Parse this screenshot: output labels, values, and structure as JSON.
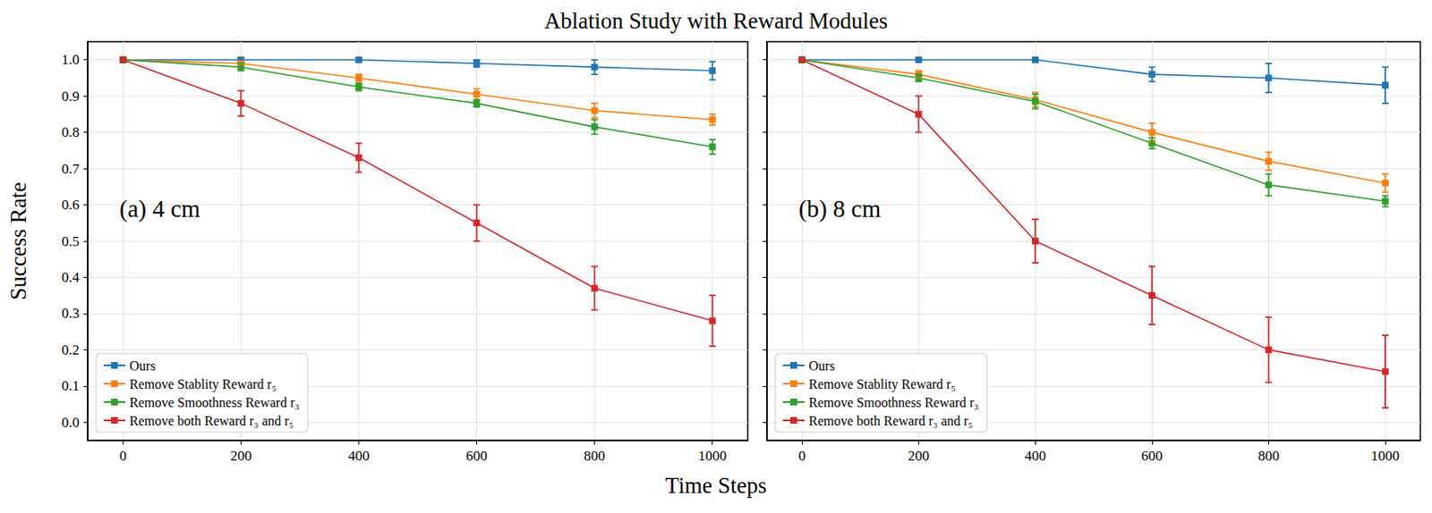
{
  "title": "Ablation Study with Reward Modules",
  "x_label": "Time Steps",
  "y_label": "Success Rate",
  "chart_data": [
    {
      "type": "line",
      "annotation": "(a) 4 cm",
      "legend": "lower left",
      "grid": true,
      "marker": "square",
      "x": [
        0,
        200,
        400,
        600,
        800,
        1000
      ],
      "xlim": [
        -60,
        1060
      ],
      "xticks": [
        0,
        200,
        400,
        600,
        800,
        1000
      ],
      "ylim": [
        -0.05,
        1.05
      ],
      "yticks": [
        {
          "value": 0,
          "label": "0.0"
        },
        0.1,
        0.2,
        0.3,
        0.4,
        0.5,
        0.6,
        0.7,
        0.8,
        0.9,
        {
          "value": 1,
          "label": "1.0"
        }
      ],
      "series": [
        {
          "name": "Ours",
          "color": "#1f77b4",
          "values": [
            1.0,
            1.0,
            1.0,
            0.99,
            0.98,
            0.97
          ],
          "errors": [
            0,
            0.005,
            0.005,
            0.01,
            0.02,
            0.025
          ]
        },
        {
          "name": "Remove Stablity Reward r₅",
          "color": "#ff7f0e",
          "values": [
            1.0,
            0.99,
            0.95,
            0.905,
            0.86,
            0.835
          ],
          "errors": [
            0,
            0.005,
            0.01,
            0.015,
            0.02,
            0.015
          ]
        },
        {
          "name": "Remove Smoothness Reward r₃",
          "color": "#2ca02c",
          "values": [
            1.0,
            0.98,
            0.925,
            0.88,
            0.815,
            0.76
          ],
          "errors": [
            0,
            0.01,
            0.01,
            0.01,
            0.02,
            0.02
          ]
        },
        {
          "name": "Remove both Reward r₃ and r₅",
          "color": "#d62728",
          "values": [
            1.0,
            0.88,
            0.73,
            0.55,
            0.37,
            0.28
          ],
          "errors": [
            0,
            0.035,
            0.04,
            0.05,
            0.06,
            0.07
          ]
        }
      ]
    },
    {
      "type": "line",
      "annotation": "(b) 8 cm",
      "legend": "lower left",
      "grid": true,
      "marker": "square",
      "tick_labels": "x",
      "x": [
        0,
        200,
        400,
        600,
        800,
        1000
      ],
      "xlim": [
        -60,
        1060
      ],
      "xticks": [
        0,
        200,
        400,
        600,
        800,
        1000
      ],
      "ylim": [
        -0.05,
        1.05
      ],
      "yticks": [
        {
          "value": 0,
          "label": "0.0"
        },
        0.1,
        0.2,
        0.3,
        0.4,
        0.5,
        0.6,
        0.7,
        0.8,
        0.9,
        {
          "value": 1,
          "label": "1.0"
        }
      ],
      "series": [
        {
          "name": "Ours",
          "color": "#1f77b4",
          "values": [
            1.0,
            1.0,
            1.0,
            0.96,
            0.95,
            0.93
          ],
          "errors": [
            0,
            0.003,
            0.005,
            0.02,
            0.04,
            0.05
          ]
        },
        {
          "name": "Remove Stablity Reward r₅",
          "color": "#ff7f0e",
          "values": [
            1.0,
            0.96,
            0.89,
            0.8,
            0.72,
            0.66
          ],
          "errors": [
            0,
            0.01,
            0.02,
            0.025,
            0.025,
            0.025
          ]
        },
        {
          "name": "Remove Smoothness Reward r₃",
          "color": "#2ca02c",
          "values": [
            1.0,
            0.95,
            0.885,
            0.77,
            0.655,
            0.61
          ],
          "errors": [
            0,
            0.01,
            0.02,
            0.015,
            0.03,
            0.015
          ]
        },
        {
          "name": "Remove both Reward r₃ and r₅",
          "color": "#d62728",
          "values": [
            1.0,
            0.85,
            0.5,
            0.35,
            0.2,
            0.14
          ],
          "errors": [
            0,
            0.05,
            0.06,
            0.08,
            0.09,
            0.1
          ]
        }
      ]
    }
  ]
}
